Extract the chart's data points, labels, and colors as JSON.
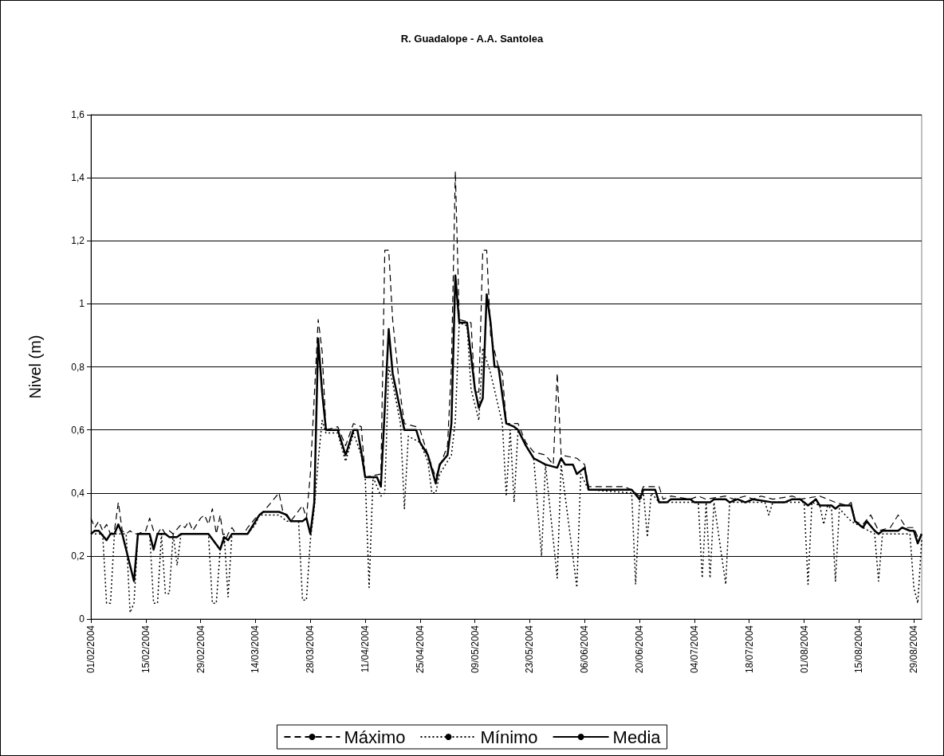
{
  "chart_data": {
    "type": "line",
    "title": "R. Guadalope - A.A. Santolea",
    "ylabel": "Nivel (m)",
    "legend": "bottom",
    "grid": "y",
    "marker": "none",
    "xlim": [
      "2004-02-01",
      "2004-08-31"
    ],
    "xticks": [
      {
        "value": "2004-02-01",
        "label": "01/02/2004"
      },
      {
        "value": "2004-02-15",
        "label": "15/02/2004"
      },
      {
        "value": "2004-02-29",
        "label": "29/02/2004"
      },
      {
        "value": "2004-03-14",
        "label": "14/03/2004"
      },
      {
        "value": "2004-03-28",
        "label": "28/03/2004"
      },
      {
        "value": "2004-04-11",
        "label": "11/04/2004"
      },
      {
        "value": "2004-04-25",
        "label": "25/04/2004"
      },
      {
        "value": "2004-05-09",
        "label": "09/05/2004"
      },
      {
        "value": "2004-05-23",
        "label": "23/05/2004"
      },
      {
        "value": "2004-06-06",
        "label": "06/06/2004"
      },
      {
        "value": "2004-06-20",
        "label": "20/06/2004"
      },
      {
        "value": "2004-07-04",
        "label": "04/07/2004"
      },
      {
        "value": "2004-07-18",
        "label": "18/07/2004"
      },
      {
        "value": "2004-08-01",
        "label": "01/08/2004"
      },
      {
        "value": "2004-08-15",
        "label": "15/08/2004"
      },
      {
        "value": "2004-08-29",
        "label": "29/08/2004"
      }
    ],
    "ylim": [
      0,
      1.6
    ],
    "yticks": [
      0,
      {
        "value": 0.2,
        "label": "0,2"
      },
      {
        "value": 0.4,
        "label": "0,4"
      },
      {
        "value": 0.6,
        "label": "0,6"
      },
      {
        "value": 0.8,
        "label": "0,8"
      },
      1,
      {
        "value": 1.2,
        "label": "1,2"
      },
      {
        "value": 1.4,
        "label": "1,4"
      },
      {
        "value": 1.6,
        "label": "1,6"
      }
    ],
    "series": [
      {
        "name": "Máximo",
        "color": "#000000",
        "line_style": "dashed",
        "x": [
          "2004-02-01",
          "2004-02-02",
          "2004-02-03",
          "2004-02-04",
          "2004-02-05",
          "2004-02-06",
          "2004-02-07",
          "2004-02-08",
          "2004-02-09",
          "2004-02-10",
          "2004-02-11",
          "2004-02-12",
          "2004-02-13",
          "2004-02-15",
          "2004-02-16",
          "2004-02-17",
          "2004-02-18",
          "2004-02-19",
          "2004-02-20",
          "2004-02-21",
          "2004-02-22",
          "2004-02-24",
          "2004-02-25",
          "2004-02-26",
          "2004-02-27",
          "2004-02-29",
          "2004-03-01",
          "2004-03-02",
          "2004-03-03",
          "2004-03-04",
          "2004-03-05",
          "2004-03-06",
          "2004-03-07",
          "2004-03-08",
          "2004-03-09",
          "2004-03-11",
          "2004-03-12",
          "2004-03-14",
          "2004-03-16",
          "2004-03-20",
          "2004-03-21",
          "2004-03-23",
          "2004-03-26",
          "2004-03-27",
          "2004-03-28",
          "2004-03-30",
          "2004-03-31",
          "2004-04-01",
          "2004-04-04",
          "2004-04-06",
          "2004-04-08",
          "2004-04-10",
          "2004-04-11",
          "2004-04-15",
          "2004-04-16",
          "2004-04-17",
          "2004-04-18",
          "2004-04-20",
          "2004-04-21",
          "2004-04-24",
          "2004-04-25",
          "2004-04-27",
          "2004-04-29",
          "2004-05-02",
          "2004-05-03",
          "2004-05-04",
          "2004-05-05",
          "2004-05-08",
          "2004-05-09",
          "2004-05-10",
          "2004-05-11",
          "2004-05-12",
          "2004-05-13",
          "2004-05-15",
          "2004-05-16",
          "2004-05-17",
          "2004-05-20",
          "2004-05-22",
          "2004-05-24",
          "2004-05-27",
          "2004-05-29",
          "2004-05-30",
          "2004-05-31",
          "2004-06-04",
          "2004-06-06",
          "2004-06-07",
          "2004-06-16",
          "2004-06-18",
          "2004-06-20",
          "2004-06-21",
          "2004-06-25",
          "2004-06-26",
          "2004-06-28",
          "2004-07-03",
          "2004-07-05",
          "2004-07-07",
          "2004-07-12",
          "2004-07-14",
          "2004-07-17",
          "2004-07-19",
          "2004-07-21",
          "2004-07-24",
          "2004-07-29",
          "2004-07-31",
          "2004-08-05",
          "2004-08-09",
          "2004-08-12",
          "2004-08-13",
          "2004-08-14",
          "2004-08-16",
          "2004-08-18",
          "2004-08-20",
          "2004-08-23",
          "2004-08-25",
          "2004-08-27",
          "2004-08-29",
          "2004-08-30",
          "2004-08-31"
        ],
        "values": [
          0.32,
          0.29,
          0.31,
          0.28,
          0.3,
          0.27,
          0.28,
          0.37,
          0.28,
          0.27,
          0.28,
          0.27,
          0.27,
          0.28,
          0.32,
          0.28,
          0.27,
          0.29,
          0.27,
          0.28,
          0.27,
          0.3,
          0.29,
          0.31,
          0.28,
          0.32,
          0.33,
          0.3,
          0.35,
          0.27,
          0.33,
          0.24,
          0.27,
          0.29,
          0.27,
          0.27,
          0.29,
          0.32,
          0.34,
          0.4,
          0.34,
          0.31,
          0.36,
          0.32,
          0.46,
          0.95,
          0.85,
          0.6,
          0.61,
          0.55,
          0.62,
          0.61,
          0.45,
          0.46,
          1.17,
          1.17,
          0.95,
          0.71,
          0.62,
          0.61,
          0.6,
          0.52,
          0.45,
          0.55,
          0.8,
          1.42,
          0.95,
          0.94,
          0.72,
          0.72,
          1.17,
          1.17,
          0.9,
          0.8,
          0.78,
          0.62,
          0.62,
          0.56,
          0.53,
          0.52,
          0.49,
          0.78,
          0.52,
          0.51,
          0.49,
          0.42,
          0.42,
          0.41,
          0.39,
          0.42,
          0.42,
          0.38,
          0.39,
          0.38,
          0.39,
          0.38,
          0.39,
          0.38,
          0.39,
          0.38,
          0.39,
          0.38,
          0.39,
          0.38,
          0.39,
          0.37,
          0.36,
          0.37,
          0.31,
          0.3,
          0.33,
          0.28,
          0.29,
          0.33,
          0.29,
          0.29,
          0.26,
          0.27
        ]
      },
      {
        "name": "Mínimo",
        "color": "#000000",
        "line_style": "dotted",
        "x": [
          "2004-02-01",
          "2004-02-04",
          "2004-02-05",
          "2004-02-06",
          "2004-02-07",
          "2004-02-10",
          "2004-02-11",
          "2004-02-12",
          "2004-02-13",
          "2004-02-16",
          "2004-02-17",
          "2004-02-18",
          "2004-02-19",
          "2004-02-20",
          "2004-02-21",
          "2004-02-22",
          "2004-02-23",
          "2004-02-24",
          "2004-03-02",
          "2004-03-03",
          "2004-03-04",
          "2004-03-05",
          "2004-03-06",
          "2004-03-07",
          "2004-03-08",
          "2004-03-12",
          "2004-03-14",
          "2004-03-15",
          "2004-03-20",
          "2004-03-22",
          "2004-03-25",
          "2004-03-26",
          "2004-03-27",
          "2004-03-28",
          "2004-03-29",
          "2004-03-30",
          "2004-03-31",
          "2004-04-01",
          "2004-04-04",
          "2004-04-06",
          "2004-04-08",
          "2004-04-10",
          "2004-04-11",
          "2004-04-12",
          "2004-04-13",
          "2004-04-15",
          "2004-04-16",
          "2004-04-17",
          "2004-04-18",
          "2004-04-20",
          "2004-04-21",
          "2004-04-22",
          "2004-04-25",
          "2004-04-27",
          "2004-04-28",
          "2004-04-29",
          "2004-04-30",
          "2004-05-03",
          "2004-05-04",
          "2004-05-05",
          "2004-05-07",
          "2004-05-08",
          "2004-05-10",
          "2004-05-11",
          "2004-05-13",
          "2004-05-16",
          "2004-05-17",
          "2004-05-18",
          "2004-05-19",
          "2004-05-20",
          "2004-05-22",
          "2004-05-24",
          "2004-05-26",
          "2004-05-27",
          "2004-05-30",
          "2004-05-31",
          "2004-06-04",
          "2004-06-05",
          "2004-06-07",
          "2004-06-18",
          "2004-06-19",
          "2004-06-20",
          "2004-06-21",
          "2004-06-22",
          "2004-06-23",
          "2004-06-25",
          "2004-07-05",
          "2004-07-06",
          "2004-07-07",
          "2004-07-08",
          "2004-07-09",
          "2004-07-12",
          "2004-07-13",
          "2004-07-22",
          "2004-07-23",
          "2004-07-24",
          "2004-08-01",
          "2004-08-02",
          "2004-08-03",
          "2004-08-05",
          "2004-08-06",
          "2004-08-07",
          "2004-08-08",
          "2004-08-09",
          "2004-08-10",
          "2004-08-13",
          "2004-08-19",
          "2004-08-20",
          "2004-08-21",
          "2004-08-28",
          "2004-08-29",
          "2004-08-30",
          "2004-08-31"
        ],
        "values": [
          0.27,
          0.27,
          0.05,
          0.05,
          0.27,
          0.27,
          0.02,
          0.05,
          0.27,
          0.27,
          0.05,
          0.05,
          0.27,
          0.08,
          0.08,
          0.27,
          0.17,
          0.27,
          0.27,
          0.05,
          0.05,
          0.22,
          0.27,
          0.07,
          0.27,
          0.27,
          0.3,
          0.33,
          0.33,
          0.31,
          0.31,
          0.06,
          0.06,
          0.25,
          0.35,
          0.5,
          0.63,
          0.59,
          0.59,
          0.5,
          0.59,
          0.52,
          0.45,
          0.1,
          0.45,
          0.39,
          0.4,
          0.8,
          0.75,
          0.62,
          0.35,
          0.58,
          0.56,
          0.5,
          0.4,
          0.4,
          0.46,
          0.52,
          0.63,
          0.94,
          0.93,
          0.73,
          0.63,
          0.86,
          0.78,
          0.62,
          0.39,
          0.6,
          0.37,
          0.6,
          0.55,
          0.51,
          0.2,
          0.49,
          0.13,
          0.49,
          0.1,
          0.46,
          0.41,
          0.4,
          0.11,
          0.37,
          0.4,
          0.26,
          0.4,
          0.37,
          0.37,
          0.13,
          0.37,
          0.13,
          0.37,
          0.11,
          0.37,
          0.37,
          0.33,
          0.37,
          0.37,
          0.11,
          0.37,
          0.36,
          0.3,
          0.36,
          0.35,
          0.12,
          0.35,
          0.31,
          0.27,
          0.12,
          0.27,
          0.27,
          0.1,
          0.05,
          0.25
        ]
      },
      {
        "name": "Media",
        "color": "#000000",
        "line_style": "solid",
        "x": [
          "2004-02-01",
          "2004-02-02",
          "2004-02-03",
          "2004-02-05",
          "2004-02-06",
          "2004-02-07",
          "2004-02-08",
          "2004-02-09",
          "2004-02-12",
          "2004-02-13",
          "2004-02-16",
          "2004-02-17",
          "2004-02-18",
          "2004-02-20",
          "2004-02-21",
          "2004-02-23",
          "2004-02-24",
          "2004-03-02",
          "2004-03-05",
          "2004-03-06",
          "2004-03-07",
          "2004-03-08",
          "2004-03-12",
          "2004-03-13",
          "2004-03-14",
          "2004-03-15",
          "2004-03-16",
          "2004-03-20",
          "2004-03-22",
          "2004-03-23",
          "2004-03-26",
          "2004-03-27",
          "2004-03-28",
          "2004-03-29",
          "2004-03-30",
          "2004-03-31",
          "2004-04-01",
          "2004-04-04",
          "2004-04-06",
          "2004-04-08",
          "2004-04-09",
          "2004-04-10",
          "2004-04-11",
          "2004-04-14",
          "2004-04-15",
          "2004-04-17",
          "2004-04-18",
          "2004-04-20",
          "2004-04-21",
          "2004-04-24",
          "2004-04-25",
          "2004-04-27",
          "2004-04-29",
          "2004-04-30",
          "2004-05-02",
          "2004-05-03",
          "2004-05-04",
          "2004-05-05",
          "2004-05-07",
          "2004-05-09",
          "2004-05-10",
          "2004-05-11",
          "2004-05-12",
          "2004-05-13",
          "2004-05-14",
          "2004-05-15",
          "2004-05-17",
          "2004-05-19",
          "2004-05-20",
          "2004-05-22",
          "2004-05-24",
          "2004-05-27",
          "2004-05-30",
          "2004-05-31",
          "2004-06-01",
          "2004-06-03",
          "2004-06-04",
          "2004-06-06",
          "2004-06-07",
          "2004-06-18",
          "2004-06-20",
          "2004-06-21",
          "2004-06-24",
          "2004-06-25",
          "2004-06-27",
          "2004-06-28",
          "2004-07-03",
          "2004-07-04",
          "2004-07-08",
          "2004-07-09",
          "2004-07-12",
          "2004-07-13",
          "2004-07-15",
          "2004-07-17",
          "2004-07-19",
          "2004-07-24",
          "2004-07-27",
          "2004-07-29",
          "2004-07-31",
          "2004-08-02",
          "2004-08-04",
          "2004-08-05",
          "2004-08-08",
          "2004-08-09",
          "2004-08-10",
          "2004-08-13",
          "2004-08-14",
          "2004-08-16",
          "2004-08-17",
          "2004-08-19",
          "2004-08-20",
          "2004-08-21",
          "2004-08-25",
          "2004-08-26",
          "2004-08-28",
          "2004-08-29",
          "2004-08-30",
          "2004-08-31"
        ],
        "values": [
          0.27,
          0.28,
          0.28,
          0.25,
          0.27,
          0.27,
          0.3,
          0.27,
          0.12,
          0.27,
          0.27,
          0.22,
          0.27,
          0.27,
          0.26,
          0.26,
          0.27,
          0.27,
          0.22,
          0.26,
          0.25,
          0.27,
          0.27,
          0.29,
          0.31,
          0.33,
          0.34,
          0.34,
          0.33,
          0.31,
          0.31,
          0.32,
          0.27,
          0.37,
          0.89,
          0.72,
          0.6,
          0.6,
          0.52,
          0.6,
          0.6,
          0.53,
          0.45,
          0.45,
          0.42,
          0.92,
          0.78,
          0.66,
          0.6,
          0.6,
          0.56,
          0.52,
          0.43,
          0.49,
          0.52,
          0.62,
          1.09,
          0.94,
          0.94,
          0.73,
          0.67,
          0.7,
          1.03,
          0.94,
          0.8,
          0.8,
          0.62,
          0.61,
          0.6,
          0.55,
          0.51,
          0.49,
          0.48,
          0.51,
          0.49,
          0.49,
          0.46,
          0.48,
          0.41,
          0.41,
          0.38,
          0.41,
          0.41,
          0.37,
          0.37,
          0.38,
          0.38,
          0.37,
          0.37,
          0.38,
          0.38,
          0.37,
          0.38,
          0.37,
          0.38,
          0.37,
          0.37,
          0.38,
          0.38,
          0.36,
          0.38,
          0.36,
          0.36,
          0.35,
          0.36,
          0.36,
          0.31,
          0.29,
          0.31,
          0.28,
          0.27,
          0.28,
          0.28,
          0.29,
          0.28,
          0.28,
          0.24,
          0.27
        ]
      }
    ]
  }
}
